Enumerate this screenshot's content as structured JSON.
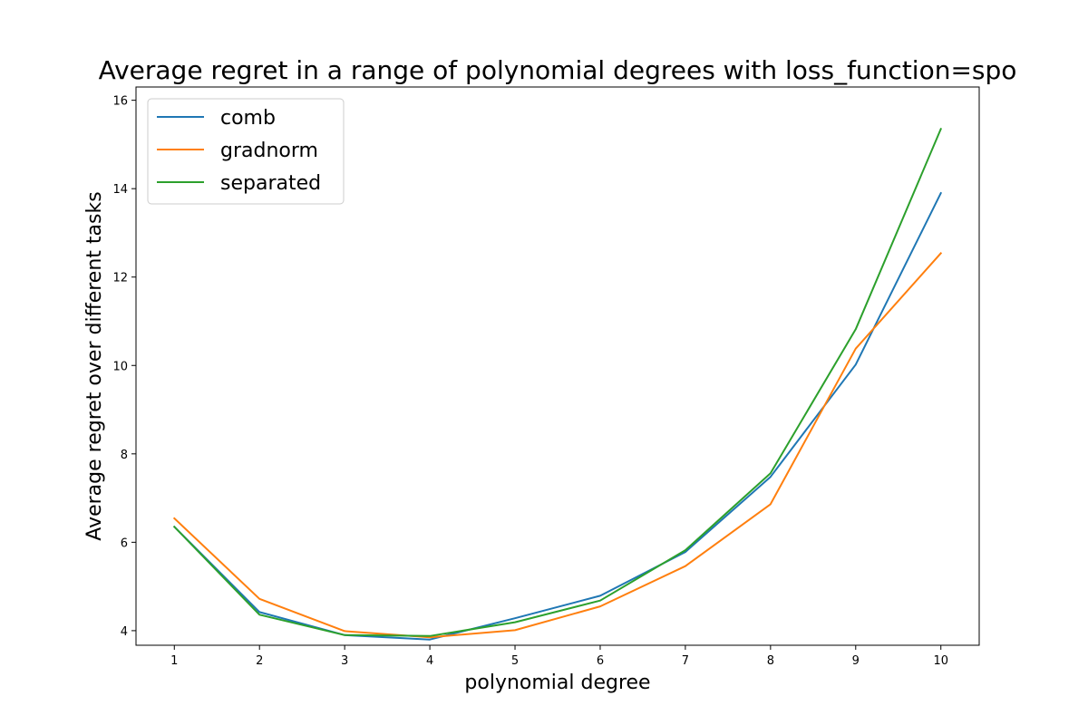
{
  "chart_data": {
    "type": "line",
    "title": "Average regret in a range of polynomial degrees with loss_function=spo",
    "xlabel": "polynomial degree",
    "ylabel": "Average regret over different tasks",
    "x": [
      1,
      2,
      3,
      4,
      5,
      6,
      7,
      8,
      9,
      10
    ],
    "xticks": [
      "1",
      "2",
      "3",
      "4",
      "5",
      "6",
      "7",
      "8",
      "9",
      "10"
    ],
    "yticks": [
      "4",
      "6",
      "8",
      "10",
      "12",
      "14",
      "16"
    ],
    "xlim": [
      0.55,
      10.45
    ],
    "ylim": [
      3.67,
      16.3
    ],
    "grid": false,
    "legend_position": "upper-left",
    "series": [
      {
        "name": "comb",
        "color": "#1f77b4",
        "values": [
          6.35,
          4.42,
          3.9,
          3.8,
          4.28,
          4.79,
          5.78,
          7.48,
          10.02,
          13.9
        ]
      },
      {
        "name": "gradnorm",
        "color": "#ff7f0e",
        "values": [
          6.54,
          4.72,
          3.99,
          3.85,
          4.01,
          4.55,
          5.46,
          6.86,
          10.38,
          12.54
        ]
      },
      {
        "name": "separated",
        "color": "#2ca02c",
        "values": [
          6.35,
          4.36,
          3.9,
          3.88,
          4.19,
          4.68,
          5.82,
          7.56,
          10.82,
          15.35
        ]
      }
    ]
  }
}
